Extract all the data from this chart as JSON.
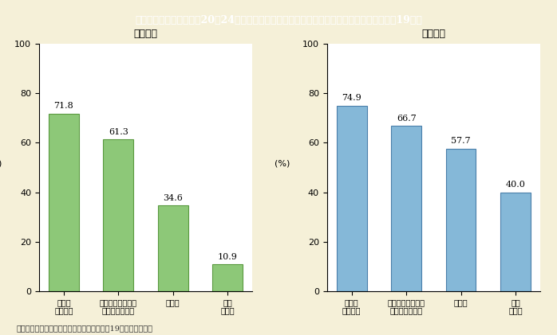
{
  "title": "第１－５－９図　男女別20～24歳層（在学者を除く）人口に占める正規雇用者の比率（平成19年）",
  "title_bg_color": "#5b6e3c",
  "title_text_color": "#ffffff",
  "background_color": "#f5f0d8",
  "plot_bg_color": "#ffffff",
  "female_label": "〈女性〉",
  "male_label": "〈男性〉",
  "categories": [
    "大学、\n大学院卒",
    "高専学校・短大・\n高等専門学校卒",
    "高校卒",
    "小・\n中学卒"
  ],
  "female_values": [
    71.8,
    61.3,
    34.6,
    10.9
  ],
  "male_values": [
    74.9,
    66.7,
    57.7,
    40.0
  ],
  "female_bar_color": "#8dc878",
  "female_bar_edge": "#5a9a40",
  "male_bar_color": "#85b8d8",
  "male_bar_edge": "#4a7faa",
  "ylabel": "(%)",
  "ylim": [
    0,
    100
  ],
  "yticks": [
    0,
    20,
    40,
    60,
    80,
    100
  ],
  "footnote": "（備考）総務省「就業構造基本調査」（平成19年）より作成。",
  "bar_width": 0.55
}
